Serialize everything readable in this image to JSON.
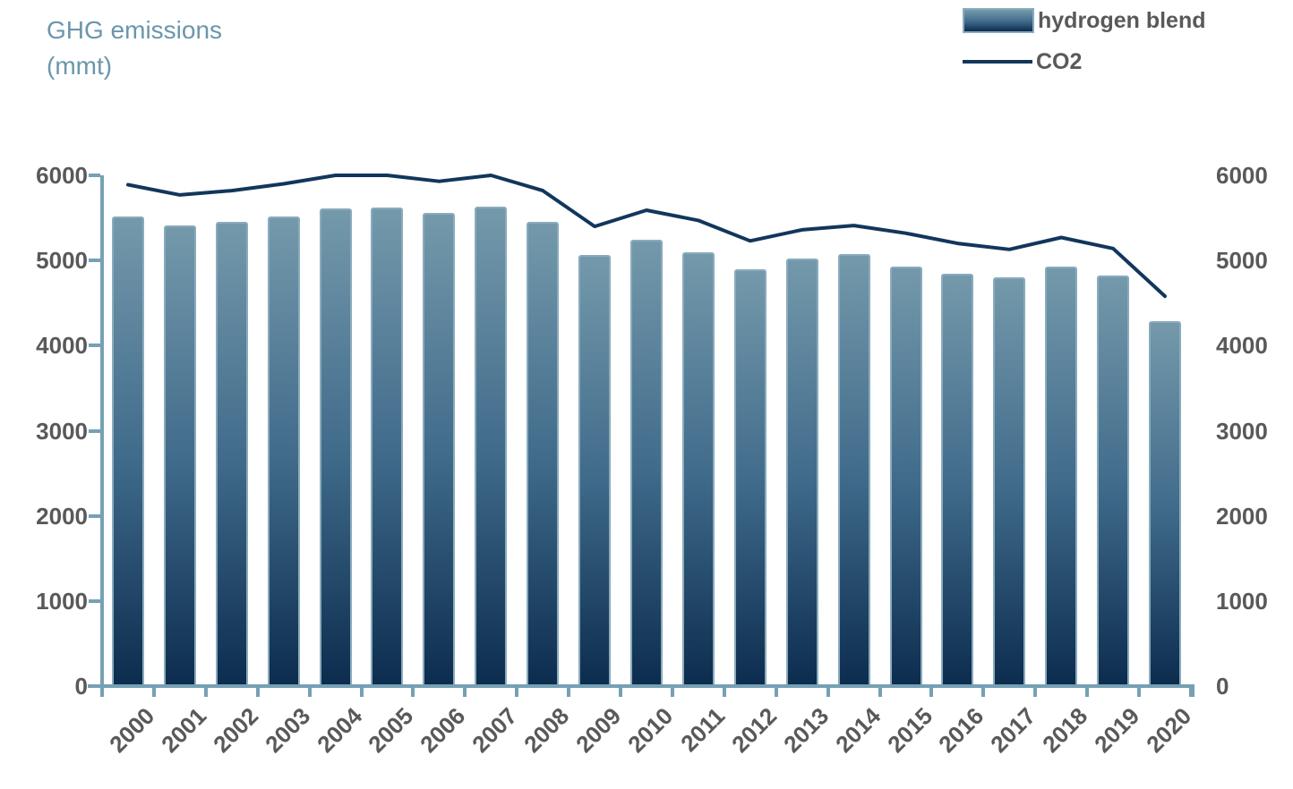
{
  "title": {
    "line1": "GHG emissions",
    "line2": "(mmt)"
  },
  "legend": {
    "items": [
      {
        "label": "hydrogen blend",
        "swatch": "bar-gradient-swatch"
      },
      {
        "label": "CO2",
        "swatch": "line-swatch"
      }
    ]
  },
  "colors": {
    "axis": "#76a0b5",
    "text_gray": "#595959",
    "title_blue": "#6b96ac",
    "bar_top": "#7499ab",
    "bar_mid": "#3f6a8a",
    "bar_bottom": "#0c2c4e",
    "bar_border": "#8aabbc",
    "line": "#12365c",
    "background": "#ffffff"
  },
  "chart_data": {
    "type": "bar",
    "title": "GHG emissions (mmt)",
    "categories": [
      "2000",
      "2001",
      "2002",
      "2003",
      "2004",
      "2005",
      "2006",
      "2007",
      "2008",
      "2009",
      "2010",
      "2011",
      "2012",
      "2013",
      "2014",
      "2015",
      "2016",
      "2017",
      "2018",
      "2019",
      "2020"
    ],
    "series": [
      {
        "name": "hydrogen blend",
        "type": "bar",
        "values": [
          5520,
          5410,
          5450,
          5520,
          5610,
          5620,
          5560,
          5630,
          5450,
          5070,
          5240,
          5100,
          4900,
          5020,
          5080,
          4930,
          4840,
          4800,
          4930,
          4820,
          4290
        ]
      },
      {
        "name": "CO2",
        "type": "line",
        "values": [
          5890,
          5770,
          5820,
          5900,
          6000,
          6000,
          5930,
          6000,
          5820,
          5400,
          5590,
          5470,
          5230,
          5360,
          5410,
          5320,
          5200,
          5130,
          5270,
          5140,
          4580
        ]
      }
    ],
    "xlabel": "",
    "ylabel_left": "GHG emissions (mmt)",
    "ylim": [
      0,
      6000
    ],
    "yticks": [
      "0",
      "1000",
      "2000",
      "3000",
      "4000",
      "5000",
      "6000"
    ],
    "dual_axis": true,
    "grid": false,
    "legend_position": "top-right"
  }
}
